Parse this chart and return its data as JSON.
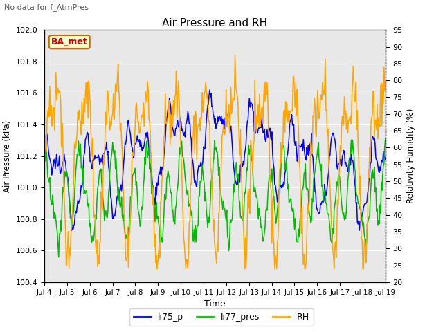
{
  "title": "Air Pressure and RH",
  "suptitle": "No data for f_AtmPres",
  "xlabel": "Time",
  "ylabel_left": "Air Pressure (kPa)",
  "ylabel_right": "Relativity Humidity (%)",
  "ylim_left": [
    100.4,
    102.0
  ],
  "ylim_right": [
    20,
    95
  ],
  "yticks_left": [
    100.4,
    100.6,
    100.8,
    101.0,
    101.2,
    101.4,
    101.6,
    101.8,
    102.0
  ],
  "yticks_right": [
    20,
    25,
    30,
    35,
    40,
    45,
    50,
    55,
    60,
    65,
    70,
    75,
    80,
    85,
    90,
    95
  ],
  "xtick_labels": [
    "Jul 4",
    "Jul 5",
    "Jul 6",
    "Jul 7",
    "Jul 8",
    "Jul 9",
    "Jul 10",
    "Jul 11",
    "Jul 12",
    "Jul 13",
    "Jul 14",
    "Jul 15",
    "Jul 16",
    "Jul 17",
    "Jul 18",
    "Jul 19"
  ],
  "color_li75": "#0000ff",
  "color_li77": "#00bb00",
  "color_rh": "#ffa500",
  "color_bg": "#e8e8e8",
  "legend_labels": [
    "li75_p",
    "li77_pres",
    "RH"
  ],
  "annotation_text": "BA_met",
  "n_points": 500
}
